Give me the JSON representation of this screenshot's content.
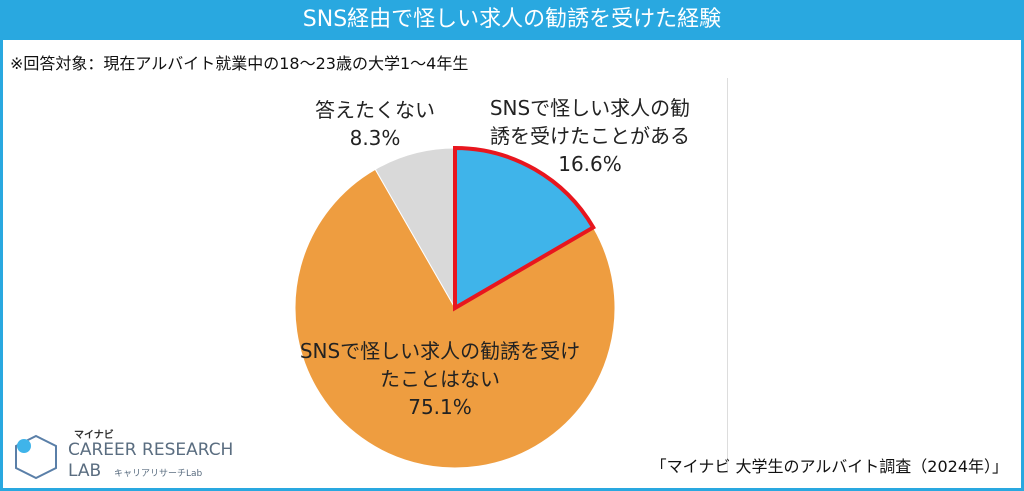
{
  "title": "SNS経由で怪しい求人の勧誘を受けた経験",
  "subtitle": "※回答対象：現在アルバイト就業中の18～23歳の大学1～4年生",
  "source": "「マイナビ 大学生のアルバイト調査（2024年）」",
  "logo": {
    "brand": "マイナビ",
    "line1": "CAREER RESEARCH",
    "line2": "LAB",
    "kana": "キャリアリサーチLab"
  },
  "chart_data": {
    "type": "pie",
    "categories": [
      "SNSで怪しい求人の勧誘を受けたことがある",
      "SNSで怪しい求人の勧誘を受けたことはない",
      "答えたくない"
    ],
    "values": [
      16.6,
      75.1,
      8.3
    ],
    "value_labels": [
      "16.6%",
      "75.1%",
      "8.3%"
    ],
    "colors": [
      "#3fb4ea",
      "#ee9d40",
      "#d9d9d9"
    ],
    "highlight_index": 0,
    "highlight_color": "#e8161e"
  }
}
